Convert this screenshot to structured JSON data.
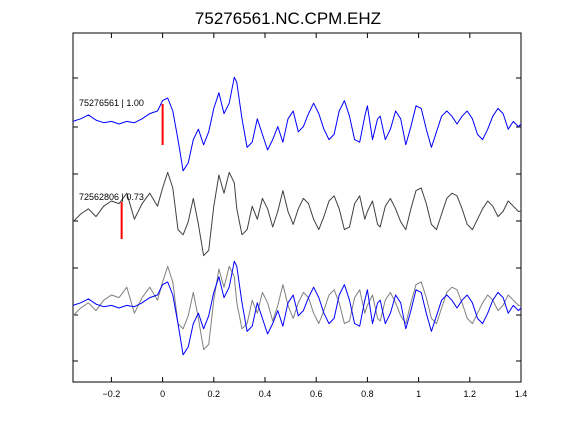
{
  "chart_data": {
    "type": "line",
    "title": "75276561.NC.CPM.EHZ",
    "xlabel": "",
    "ylabel": "",
    "xlim": [
      -0.35,
      1.4
    ],
    "x_ticks": [
      -0.2,
      0,
      0.2,
      0.4,
      0.6,
      0.8,
      1,
      1.2,
      1.4
    ],
    "x_tick_labels": [
      "−0.2",
      "0",
      "0.2",
      "0.4",
      "0.6",
      "0.8",
      "1",
      "1.2",
      "1.4"
    ],
    "grid": false,
    "picks": [
      {
        "trace": "75276561 | 1.00",
        "x": 0.0,
        "color": "#ff0000"
      },
      {
        "trace": "72562806 | 0.73",
        "x": -0.16,
        "color": "#ff0000"
      }
    ],
    "series": [
      {
        "name": "75276561 | 1.00",
        "color": "#0000ff",
        "x": [
          -0.35,
          -0.32,
          -0.29,
          -0.26,
          -0.23,
          -0.2,
          -0.17,
          -0.14,
          -0.11,
          -0.08,
          -0.05,
          -0.02,
          0.0,
          0.02,
          0.04,
          0.06,
          0.08,
          0.1,
          0.12,
          0.14,
          0.16,
          0.18,
          0.2,
          0.22,
          0.24,
          0.26,
          0.28,
          0.29,
          0.31,
          0.33,
          0.35,
          0.37,
          0.39,
          0.41,
          0.43,
          0.45,
          0.47,
          0.49,
          0.51,
          0.53,
          0.55,
          0.57,
          0.59,
          0.61,
          0.63,
          0.65,
          0.67,
          0.69,
          0.71,
          0.73,
          0.75,
          0.77,
          0.79,
          0.8,
          0.82,
          0.84,
          0.85,
          0.87,
          0.89,
          0.91,
          0.93,
          0.95,
          0.97,
          0.99,
          1.01,
          1.03,
          1.05,
          1.07,
          1.09,
          1.11,
          1.13,
          1.15,
          1.17,
          1.19,
          1.21,
          1.23,
          1.25,
          1.27,
          1.29,
          1.31,
          1.33,
          1.35,
          1.37,
          1.39,
          1.4
        ],
        "y": [
          0.1,
          0.2,
          0.35,
          0.15,
          0.05,
          0.1,
          0.0,
          0.1,
          0.05,
          0.2,
          0.4,
          0.5,
          0.9,
          1.0,
          0.5,
          -0.6,
          -1.8,
          -1.5,
          -0.6,
          -0.2,
          -0.8,
          -0.3,
          0.6,
          1.2,
          0.4,
          0.8,
          1.8,
          1.6,
          0.2,
          -0.9,
          -0.7,
          0.2,
          -0.4,
          -1.0,
          -0.6,
          -0.1,
          -0.7,
          0.2,
          0.5,
          -0.3,
          -0.1,
          0.4,
          0.8,
          0.4,
          -0.2,
          -0.6,
          -0.4,
          0.5,
          0.9,
          0.3,
          -0.6,
          -0.7,
          0.3,
          0.7,
          -0.6,
          0.2,
          0.3,
          -0.6,
          -0.2,
          0.5,
          0.2,
          -0.8,
          -0.1,
          0.7,
          0.6,
          -0.2,
          -0.9,
          -0.3,
          0.3,
          0.5,
          0.3,
          0.0,
          0.3,
          0.5,
          0.2,
          -0.4,
          -0.6,
          -0.2,
          0.3,
          0.6,
          0.4,
          -0.2,
          0.1,
          -0.1,
          0.0
        ]
      },
      {
        "name": "72562806 | 0.73",
        "color": "#404040",
        "x": [
          -0.35,
          -0.32,
          -0.29,
          -0.26,
          -0.23,
          -0.2,
          -0.17,
          -0.14,
          -0.11,
          -0.08,
          -0.05,
          -0.02,
          0.0,
          0.02,
          0.04,
          0.06,
          0.08,
          0.1,
          0.12,
          0.14,
          0.16,
          0.18,
          0.2,
          0.22,
          0.24,
          0.26,
          0.28,
          0.29,
          0.31,
          0.33,
          0.35,
          0.37,
          0.39,
          0.41,
          0.43,
          0.45,
          0.47,
          0.49,
          0.51,
          0.53,
          0.55,
          0.57,
          0.59,
          0.61,
          0.63,
          0.65,
          0.67,
          0.69,
          0.71,
          0.73,
          0.75,
          0.77,
          0.79,
          0.8,
          0.82,
          0.84,
          0.85,
          0.87,
          0.89,
          0.91,
          0.93,
          0.95,
          0.97,
          0.99,
          1.01,
          1.03,
          1.05,
          1.07,
          1.09,
          1.11,
          1.13,
          1.15,
          1.17,
          1.19,
          1.21,
          1.23,
          1.25,
          1.27,
          1.29,
          1.31,
          1.33,
          1.35,
          1.37,
          1.39,
          1.4
        ],
        "y": [
          -0.3,
          0.0,
          0.2,
          -0.1,
          0.3,
          0.5,
          0.4,
          0.8,
          -0.2,
          0.4,
          0.8,
          0.3,
          1.0,
          1.6,
          1.0,
          -0.6,
          -0.8,
          -0.3,
          0.6,
          -0.4,
          -1.6,
          -1.4,
          0.3,
          1.5,
          0.8,
          1.6,
          1.2,
          0.2,
          -0.8,
          -0.6,
          0.3,
          -0.2,
          0.6,
          0.2,
          -0.5,
          0.1,
          0.9,
          0.1,
          -0.4,
          0.2,
          0.6,
          0.4,
          -0.2,
          -0.6,
          -0.1,
          0.5,
          0.7,
          0.2,
          -0.6,
          -0.5,
          0.4,
          0.7,
          -0.2,
          0.1,
          0.5,
          -0.4,
          -0.5,
          0.3,
          0.6,
          0.2,
          -0.3,
          -0.6,
          0.2,
          0.9,
          1.0,
          0.4,
          -0.4,
          -0.6,
          0.0,
          0.6,
          0.8,
          0.7,
          0.2,
          -0.4,
          -0.6,
          -0.2,
          0.2,
          0.5,
          0.3,
          -0.1,
          0.1,
          0.5,
          0.3,
          0.1,
          0.1
        ]
      }
    ]
  }
}
